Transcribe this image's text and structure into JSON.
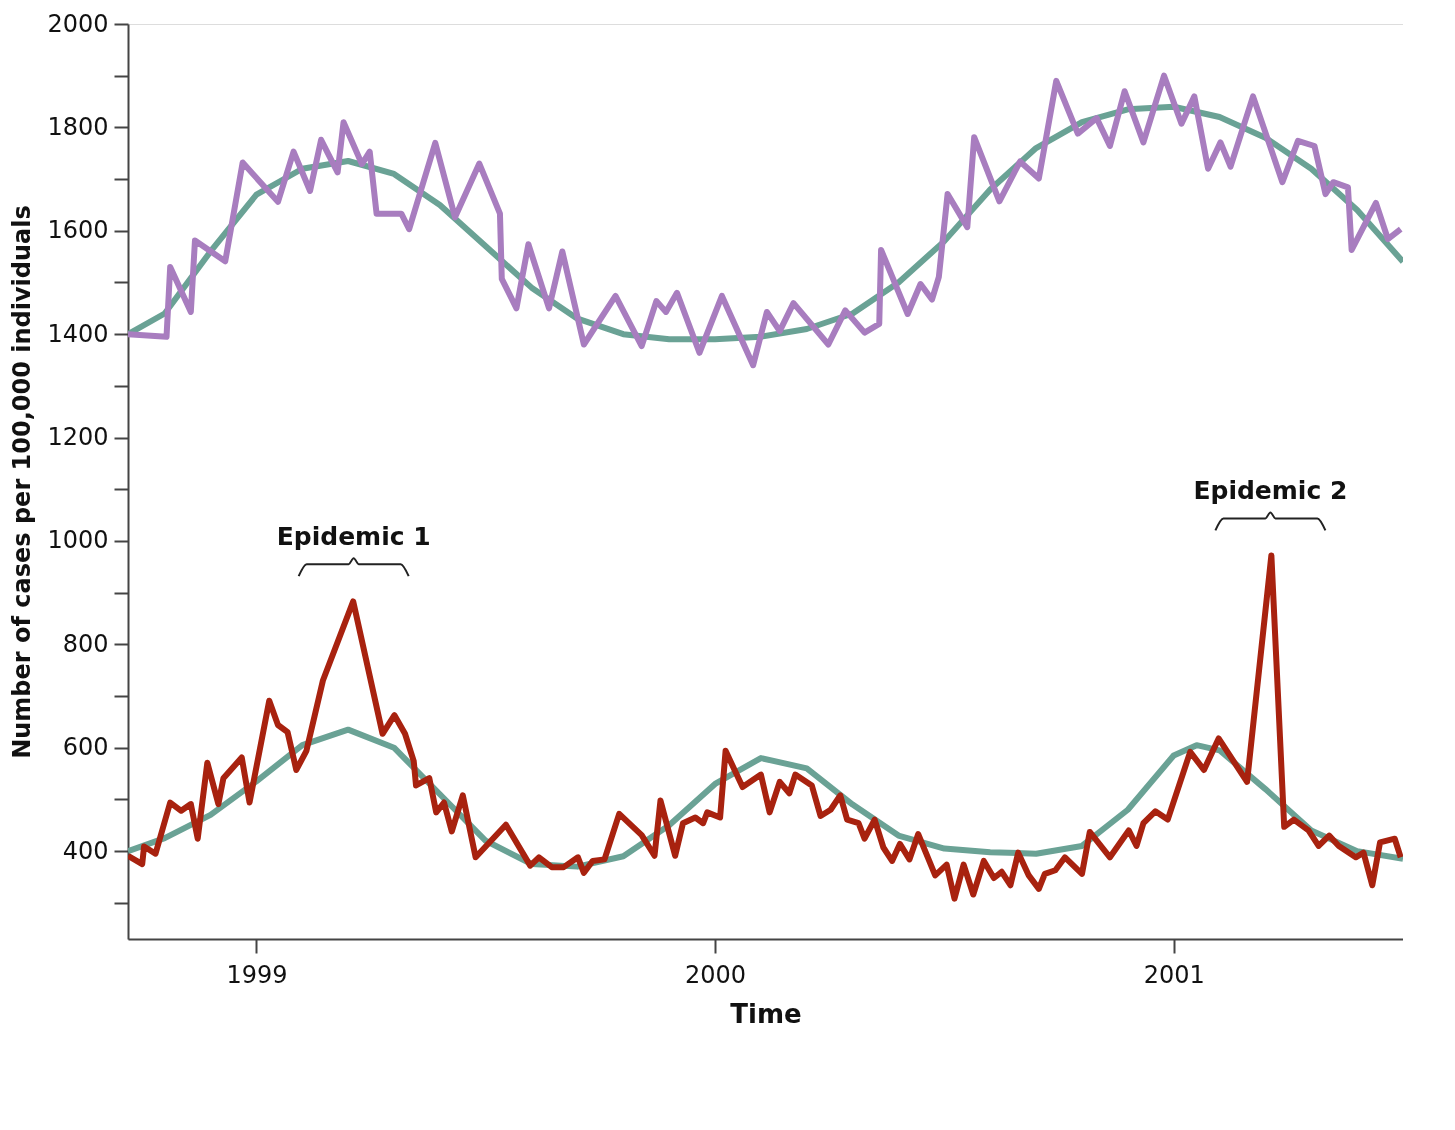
{
  "chart_data": {
    "type": "line",
    "xlabel": "Time",
    "ylabel": "Number of cases per 100,000 individuals",
    "xlim": [
      1998.72,
      2001.5
    ],
    "xticks": [
      1999,
      2000,
      2001
    ],
    "ylim": [
      230,
      2000
    ],
    "yticks": [
      {
        "value": 300,
        "label": null
      },
      400,
      {
        "value": 500,
        "label": null
      },
      600,
      {
        "value": 700,
        "label": null
      },
      800,
      {
        "value": 900,
        "label": null
      },
      1000,
      {
        "value": 1100,
        "label": null
      },
      1200,
      {
        "value": 1300,
        "label": null
      },
      1400,
      {
        "value": 1500,
        "label": null
      },
      1600,
      {
        "value": 1700,
        "label": null
      },
      1800,
      {
        "value": 1900,
        "label": null
      },
      2000
    ],
    "grid": false,
    "line_style": "solid",
    "marker": "none",
    "annotations": [
      "Epidemic 1",
      "Epidemic 2"
    ],
    "series": [
      {
        "color": "#6aa295",
        "x": [
          1998.72,
          1998.8,
          1998.9,
          1999.0,
          1999.1,
          1999.2,
          1999.3,
          1999.4,
          1999.5,
          1999.6,
          1999.7,
          1999.8,
          1999.9,
          2000.0,
          2000.1,
          2000.2,
          2000.3,
          2000.4,
          2000.5,
          2000.6,
          2000.7,
          2000.8,
          2000.9,
          2001.0,
          2001.1,
          2001.2,
          2001.3,
          2001.4,
          2001.5
        ],
        "values": [
          1400,
          1440,
          1560,
          1670,
          1720,
          1735,
          1710,
          1650,
          1570,
          1490,
          1430,
          1400,
          1390,
          1390,
          1395,
          1410,
          1440,
          1500,
          1580,
          1680,
          1760,
          1810,
          1835,
          1840,
          1820,
          1780,
          1720,
          1640,
          1540
        ]
      },
      {
        "color": "#6aa295",
        "x": [
          1998.72,
          1998.8,
          1998.9,
          1999.0,
          1999.1,
          1999.2,
          1999.3,
          1999.4,
          1999.5,
          1999.6,
          1999.7,
          1999.8,
          1999.9,
          2000.0,
          2000.1,
          2000.2,
          2000.3,
          2000.4,
          2000.5,
          2000.6,
          2000.7,
          2000.8,
          2000.9,
          2001.0,
          2001.05,
          2001.1,
          2001.2,
          2001.3,
          2001.4,
          2001.5
        ],
        "values": [
          400,
          425,
          470,
          535,
          605,
          635,
          600,
          510,
          420,
          375,
          370,
          390,
          450,
          530,
          580,
          560,
          490,
          430,
          405,
          398,
          395,
          410,
          480,
          585,
          605,
          595,
          520,
          440,
          400,
          385
        ]
      },
      {
        "color": "#a87dbf",
        "x": [
          1998.72,
          1998.804,
          1998.812,
          1998.857,
          1998.866,
          1998.932,
          1998.97,
          1999.047,
          1999.081,
          1999.117,
          1999.141,
          1999.177,
          1999.19,
          1999.23,
          1999.247,
          1999.262,
          1999.316,
          1999.333,
          1999.39,
          1999.433,
          1999.486,
          1999.531,
          1999.535,
          1999.567,
          1999.593,
          1999.638,
          1999.667,
          1999.714,
          1999.783,
          1999.84,
          1999.872,
          1999.893,
          1999.917,
          1999.966,
          2000.015,
          2000.083,
          2000.113,
          2000.141,
          2000.171,
          2000.247,
          2000.284,
          2000.326,
          2000.358,
          2000.362,
          2000.42,
          2000.448,
          2000.473,
          2000.488,
          2000.507,
          2000.55,
          2000.565,
          2000.62,
          2000.665,
          2000.706,
          2000.744,
          2000.791,
          2000.832,
          2000.861,
          2000.893,
          2000.934,
          2000.979,
          2001.017,
          2001.045,
          2001.075,
          2001.102,
          2001.124,
          2001.173,
          2001.237,
          2001.271,
          2001.307,
          2001.331,
          2001.348,
          2001.38,
          2001.388,
          2001.441,
          2001.467,
          2001.495
        ],
        "values": [
          1400,
          1395,
          1530,
          1443,
          1581,
          1541,
          1732,
          1656,
          1753,
          1677,
          1776,
          1713,
          1810,
          1729,
          1753,
          1633,
          1633,
          1603,
          1770,
          1626,
          1730,
          1633,
          1507,
          1450,
          1574,
          1450,
          1560,
          1380,
          1474,
          1377,
          1464,
          1443,
          1480,
          1364,
          1474,
          1340,
          1443,
          1406,
          1460,
          1380,
          1446,
          1403,
          1420,
          1563,
          1439,
          1497,
          1467,
          1511,
          1671,
          1607,
          1781,
          1657,
          1734,
          1701,
          1890,
          1788,
          1818,
          1764,
          1870,
          1771,
          1900,
          1807,
          1860,
          1720,
          1771,
          1724,
          1860,
          1694,
          1774,
          1764,
          1671,
          1694,
          1684,
          1563,
          1654,
          1584,
          1603
        ]
      },
      {
        "color": "#a8220f",
        "x": [
          1998.72,
          1998.751,
          1998.755,
          1998.78,
          1998.812,
          1998.836,
          1998.857,
          1998.872,
          1998.893,
          1998.917,
          1998.928,
          1998.968,
          1998.985,
          1999.028,
          1999.047,
          1999.068,
          1999.087,
          1999.109,
          1999.145,
          1999.211,
          1999.275,
          1999.301,
          1999.324,
          1999.343,
          1999.348,
          1999.377,
          1999.392,
          1999.409,
          1999.426,
          1999.45,
          1999.478,
          1999.544,
          1999.597,
          1999.616,
          1999.644,
          1999.67,
          1999.701,
          1999.714,
          1999.733,
          1999.759,
          1999.791,
          1999.84,
          1999.868,
          1999.881,
          1999.913,
          1999.93,
          1999.957,
          1999.974,
          1999.983,
          2000.011,
          2000.023,
          2000.06,
          2000.1,
          2000.119,
          2000.141,
          2000.162,
          2000.175,
          2000.211,
          2000.23,
          2000.252,
          2000.273,
          2000.288,
          2000.313,
          2000.326,
          2000.348,
          2000.367,
          2000.386,
          2000.403,
          2000.424,
          2000.443,
          2000.48,
          2000.505,
          2000.522,
          2000.542,
          2000.563,
          2000.586,
          2000.608,
          2000.625,
          2000.644,
          2000.661,
          2000.684,
          2000.706,
          2000.719,
          2000.742,
          2000.763,
          2000.8,
          2000.817,
          2000.861,
          2000.902,
          2000.919,
          2000.934,
          2000.96,
          2000.987,
          2001.036,
          2001.066,
          2001.098,
          2001.16,
          2001.213,
          2001.241,
          2001.262,
          2001.294,
          2001.316,
          2001.339,
          2001.36,
          2001.397,
          2001.414,
          2001.433,
          2001.45,
          2001.482,
          2001.495
        ],
        "values": [
          391,
          375,
          409,
          395,
          494,
          478,
          491,
          424,
          571,
          491,
          541,
          581,
          494,
          691,
          644,
          630,
          557,
          594,
          730,
          883,
          627,
          663,
          627,
          574,
          527,
          541,
          475,
          494,
          438,
          508,
          388,
          451,
          372,
          388,
          369,
          369,
          388,
          358,
          381,
          384,
          472,
          431,
          391,
          498,
          391,
          454,
          465,
          454,
          475,
          465,
          594,
          524,
          548,
          475,
          534,
          512,
          548,
          527,
          468,
          480,
          508,
          461,
          454,
          424,
          461,
          407,
          381,
          414,
          384,
          433,
          353,
          374,
          308,
          374,
          316,
          381,
          348,
          360,
          334,
          397,
          353,
          327,
          356,
          363,
          388,
          356,
          437,
          388,
          440,
          410,
          454,
          477,
          461,
          592,
          557,
          618,
          534,
          972,
          447,
          461,
          440,
          410,
          430,
          410,
          388,
          397,
          334,
          417,
          424,
          388
        ]
      }
    ]
  }
}
